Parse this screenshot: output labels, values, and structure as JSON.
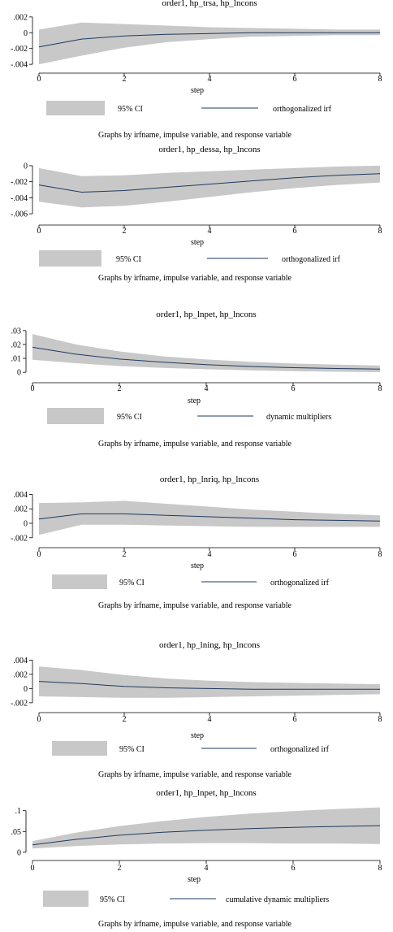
{
  "chart_data": [
    {
      "type": "area",
      "title": "order1, hp_trsa, hp_lncons",
      "xlabel": "step",
      "ylabel": "",
      "xlim": [
        0,
        8
      ],
      "ylim": [
        -0.0045,
        0.0025
      ],
      "x_ticks": [
        0,
        2,
        4,
        6,
        8
      ],
      "x_tick_labels": [
        "0",
        "2",
        "4",
        "6",
        "8"
      ],
      "y_ticks": [
        0.002,
        0,
        -0.002,
        -0.004
      ],
      "y_tick_labels": [
        ".002",
        "0",
        "-.002",
        "-.004"
      ],
      "x": [
        0,
        1,
        2,
        3,
        4,
        5,
        6,
        7,
        8
      ],
      "series": [
        {
          "name": "orthogonalized irf",
          "values": [
            -0.0018,
            -0.0008,
            -0.0004,
            -0.0002,
            -0.0001,
            0.0,
            0.0,
            0.0,
            0.0
          ]
        },
        {
          "name": "95% CI",
          "lower": [
            -0.004,
            -0.0029,
            -0.0019,
            -0.0012,
            -0.0008,
            -0.0005,
            -0.0004,
            -0.0003,
            -0.0003
          ],
          "upper": [
            0.0004,
            0.0013,
            0.0011,
            0.0009,
            0.0007,
            0.0006,
            0.0005,
            0.0004,
            0.0004
          ]
        }
      ],
      "legend": {
        "ci_label": "95% CI",
        "line_label": "orthogonalized irf",
        "position": "bottom"
      },
      "note": "Graphs by irfname, impulse variable, and response variable"
    },
    {
      "type": "area",
      "title": "order1, hp_dessa, hp_lncons",
      "xlabel": "step",
      "ylabel": "",
      "xlim": [
        0,
        8
      ],
      "ylim": [
        -0.0068,
        0.0008
      ],
      "x_ticks": [
        0,
        2,
        4,
        6,
        8
      ],
      "x_tick_labels": [
        "0",
        "2",
        "4",
        "6",
        "8"
      ],
      "y_ticks": [
        0,
        -0.002,
        -0.004,
        -0.006
      ],
      "y_tick_labels": [
        "0",
        "-.002",
        "-.004",
        "-.006"
      ],
      "x": [
        0,
        1,
        2,
        3,
        4,
        5,
        6,
        7,
        8
      ],
      "series": [
        {
          "name": "orthogonalized irf",
          "values": [
            -0.0024,
            -0.0033,
            -0.0031,
            -0.0027,
            -0.0023,
            -0.0019,
            -0.0015,
            -0.0012,
            -0.001
          ]
        },
        {
          "name": "95% CI",
          "lower": [
            -0.0045,
            -0.0052,
            -0.005,
            -0.0045,
            -0.0039,
            -0.0033,
            -0.0028,
            -0.0024,
            -0.0021
          ],
          "upper": [
            -0.0003,
            -0.0013,
            -0.0012,
            -0.0009,
            -0.0007,
            -0.0005,
            -0.0003,
            -0.0001,
            0.0
          ]
        }
      ],
      "legend": {
        "ci_label": "95% CI",
        "line_label": "orthogonalized irf",
        "position": "bottom"
      },
      "note": "Graphs by irfname, impulse variable, and response variable"
    },
    {
      "type": "area",
      "title": "order1, hp_lnpet, hp_lncons",
      "xlabel": "step",
      "ylabel": "",
      "xlim": [
        0,
        8
      ],
      "ylim": [
        -0.004,
        0.034
      ],
      "x_ticks": [
        0,
        2,
        4,
        6,
        8
      ],
      "x_tick_labels": [
        "0",
        "2",
        "4",
        "6",
        "8"
      ],
      "y_ticks": [
        0.03,
        0.02,
        0.01,
        0
      ],
      "y_tick_labels": [
        ".03",
        ".02",
        ".01",
        "0"
      ],
      "x": [
        0,
        1,
        2,
        3,
        4,
        5,
        6,
        7,
        8
      ],
      "series": [
        {
          "name": "dynamic multipliers",
          "values": [
            0.018,
            0.013,
            0.0095,
            0.0072,
            0.0055,
            0.0042,
            0.0033,
            0.0027,
            0.0023
          ]
        },
        {
          "name": "95% CI",
          "lower": [
            0.009,
            0.0065,
            0.0045,
            0.0032,
            0.0022,
            0.0014,
            0.0008,
            0.0004,
            0.0001
          ],
          "upper": [
            0.0275,
            0.02,
            0.015,
            0.0115,
            0.0092,
            0.0075,
            0.0063,
            0.0055,
            0.0048
          ]
        }
      ],
      "legend": {
        "ci_label": "95% CI",
        "line_label": "dynamic multipliers",
        "position": "bottom"
      },
      "note": "Graphs by irfname, impulse variable, and response variable"
    },
    {
      "type": "area",
      "title": "order1, hp_lnriq, hp_lncons",
      "xlabel": "step",
      "ylabel": "",
      "xlim": [
        0,
        8
      ],
      "ylim": [
        -0.0027,
        0.0045
      ],
      "x_ticks": [
        0,
        2,
        4,
        6,
        8
      ],
      "x_tick_labels": [
        "0",
        "2",
        "4",
        "6",
        "8"
      ],
      "y_ticks": [
        0.004,
        0.002,
        0,
        -0.002
      ],
      "y_tick_labels": [
        ".004",
        ".002",
        "0",
        "-.002"
      ],
      "x": [
        0,
        1,
        2,
        3,
        4,
        5,
        6,
        7,
        8
      ],
      "series": [
        {
          "name": "orthogonalized irf",
          "values": [
            0.0006,
            0.0013,
            0.0013,
            0.0011,
            0.0009,
            0.0007,
            0.0005,
            0.0004,
            0.0003
          ]
        },
        {
          "name": "95% CI",
          "lower": [
            -0.0016,
            -0.0002,
            -0.0002,
            -0.0003,
            -0.0004,
            -0.0005,
            -0.0005,
            -0.0005,
            -0.0005
          ],
          "upper": [
            0.0028,
            0.0029,
            0.0031,
            0.0027,
            0.0023,
            0.0019,
            0.0016,
            0.0013,
            0.0011
          ]
        }
      ],
      "legend": {
        "ci_label": "95% CI",
        "line_label": "orthogonalized irf",
        "position": "bottom"
      },
      "note": "Graphs by irfname, impulse variable, and response variable"
    },
    {
      "type": "area",
      "title": "order1, hp_lning, hp_lncons",
      "xlabel": "step",
      "ylabel": "",
      "xlim": [
        0,
        8
      ],
      "ylim": [
        -0.0027,
        0.0045
      ],
      "x_ticks": [
        0,
        2,
        4,
        6,
        8
      ],
      "x_tick_labels": [
        "0",
        "2",
        "4",
        "6",
        "8"
      ],
      "y_ticks": [
        0.004,
        0.002,
        0,
        -0.002
      ],
      "y_tick_labels": [
        ".004",
        ".002",
        "0",
        "-.002"
      ],
      "x": [
        0,
        1,
        2,
        3,
        4,
        5,
        6,
        7,
        8
      ],
      "series": [
        {
          "name": "orthogonalized irf",
          "values": [
            0.001,
            0.0007,
            0.0003,
            0.0001,
            0.0,
            -0.0001,
            -0.0001,
            -0.0001,
            -0.0001
          ]
        },
        {
          "name": "95% CI",
          "lower": [
            -0.0011,
            -0.0012,
            -0.0013,
            -0.0013,
            -0.0012,
            -0.0011,
            -0.001,
            -0.0009,
            -0.0008
          ],
          "upper": [
            0.0031,
            0.0026,
            0.0019,
            0.0014,
            0.0011,
            0.0009,
            0.0008,
            0.0007,
            0.0006
          ]
        }
      ],
      "legend": {
        "ci_label": "95% CI",
        "line_label": "orthogonalized irf",
        "position": "bottom"
      },
      "note": "Graphs by irfname, impulse variable, and response variable"
    },
    {
      "type": "area",
      "title": "order1, hp_lnpet, hp_lncons",
      "xlabel": "step",
      "ylabel": "",
      "xlim": [
        0,
        8
      ],
      "ylim": [
        -0.008,
        0.115
      ],
      "x_ticks": [
        0,
        2,
        4,
        6,
        8
      ],
      "x_tick_labels": [
        "0",
        "2",
        "4",
        "6",
        "8"
      ],
      "y_ticks": [
        0.1,
        0.05,
        0
      ],
      "y_tick_labels": [
        ".1",
        ".05",
        "0"
      ],
      "x": [
        0,
        1,
        2,
        3,
        4,
        5,
        6,
        7,
        8
      ],
      "series": [
        {
          "name": "cumulative dynamic multipliers",
          "values": [
            0.018,
            0.031,
            0.041,
            0.048,
            0.053,
            0.057,
            0.06,
            0.062,
            0.064
          ]
        },
        {
          "name": "95% CI",
          "lower": [
            0.009,
            0.015,
            0.019,
            0.021,
            0.022,
            0.022,
            0.021,
            0.021,
            0.02
          ],
          "upper": [
            0.027,
            0.047,
            0.063,
            0.075,
            0.085,
            0.093,
            0.099,
            0.104,
            0.108
          ]
        }
      ],
      "legend": {
        "ci_label": "95% CI",
        "line_label": "cumulative dynamic multipliers",
        "position": "bottom"
      },
      "note": "Graphs by irfname, impulse variable, and response variable"
    }
  ]
}
